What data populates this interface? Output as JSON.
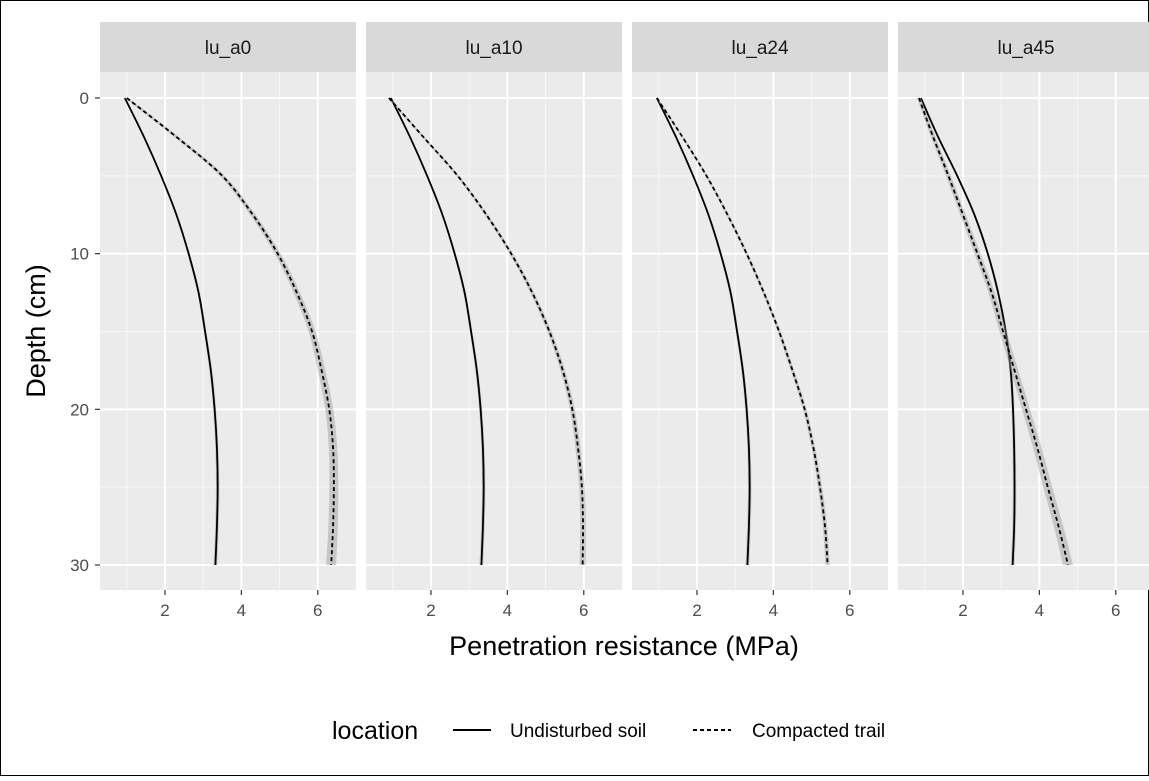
{
  "chart_data": {
    "type": "line",
    "facets": [
      "lu_a0",
      "lu_a10",
      "lu_a24",
      "lu_a45"
    ],
    "xlabel": "Penetration resistance (MPa)",
    "ylabel": "Depth (cm)",
    "xlim": [
      0.3,
      7.0
    ],
    "ylim": [
      0,
      30
    ],
    "y_reversed": true,
    "x_ticks": [
      2,
      4,
      6
    ],
    "y_ticks": [
      0,
      10,
      20,
      30
    ],
    "x_tick_labels": [
      "2",
      "4",
      "6"
    ],
    "y_tick_labels": [
      "0",
      "10",
      "20",
      "30"
    ],
    "grid": true,
    "confidence_band": true,
    "legend": {
      "title": "location",
      "position": "bottom",
      "entries": [
        {
          "label": "Undisturbed soil",
          "linetype": "solid"
        },
        {
          "label": "Compacted trail",
          "linetype": "dashed"
        }
      ]
    },
    "depth": [
      0,
      2.5,
      5,
      7.5,
      10,
      12.5,
      15,
      17.5,
      20,
      22.5,
      25,
      27.5,
      30
    ],
    "series": [
      {
        "name": "Undisturbed soil",
        "linetype": "solid",
        "panels": [
          {
            "facet": "lu_a0",
            "x": [
              0.95,
              1.45,
              1.9,
              2.3,
              2.62,
              2.88,
              3.05,
              3.2,
              3.3,
              3.36,
              3.38,
              3.36,
              3.32
            ],
            "band": 0.05
          },
          {
            "facet": "lu_a10",
            "x": [
              0.95,
              1.45,
              1.9,
              2.3,
              2.62,
              2.88,
              3.05,
              3.2,
              3.3,
              3.36,
              3.38,
              3.36,
              3.32
            ],
            "band": 0.05
          },
          {
            "facet": "lu_a24",
            "x": [
              0.95,
              1.45,
              1.9,
              2.3,
              2.62,
              2.88,
              3.05,
              3.2,
              3.3,
              3.36,
              3.38,
              3.36,
              3.32
            ],
            "band": 0.05
          },
          {
            "facet": "lu_a45",
            "x": [
              0.9,
              1.35,
              1.85,
              2.3,
              2.65,
              2.92,
              3.12,
              3.25,
              3.31,
              3.34,
              3.35,
              3.34,
              3.3
            ],
            "band": 0.05
          }
        ]
      },
      {
        "name": "Compacted trail",
        "linetype": "dashed",
        "panels": [
          {
            "facet": "lu_a0",
            "x": [
              1.0,
              2.3,
              3.5,
              4.3,
              4.95,
              5.45,
              5.85,
              6.1,
              6.3,
              6.4,
              6.42,
              6.4,
              6.35
            ],
            "band": 0.13
          },
          {
            "facet": "lu_a10",
            "x": [
              0.9,
              1.8,
              2.7,
              3.45,
              4.1,
              4.65,
              5.1,
              5.45,
              5.7,
              5.85,
              5.95,
              5.98,
              5.97
            ],
            "band": 0.08
          },
          {
            "facet": "lu_a24",
            "x": [
              0.95,
              1.62,
              2.25,
              2.8,
              3.3,
              3.75,
              4.15,
              4.5,
              4.82,
              5.05,
              5.22,
              5.35,
              5.42
            ],
            "band": 0.06
          },
          {
            "facet": "lu_a45",
            "x": [
              0.85,
              1.22,
              1.62,
              2.0,
              2.38,
              2.75,
              3.05,
              3.35,
              3.65,
              3.95,
              4.22,
              4.5,
              4.75
            ],
            "band": 0.13
          }
        ]
      }
    ]
  }
}
